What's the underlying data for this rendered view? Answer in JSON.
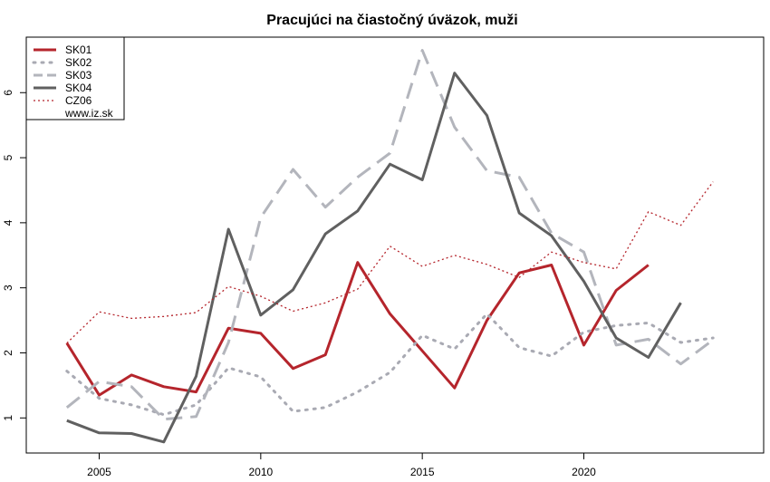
{
  "chart_data": {
    "type": "line",
    "title": "Pracujúci na čiastočný úväzok, muži",
    "xlabel": "",
    "ylabel": "",
    "xlim": [
      2003.5,
      2024.5
    ],
    "ylim": [
      0.6,
      6.7
    ],
    "x_ticks": [
      2005,
      2010,
      2015,
      2020
    ],
    "y_ticks": [
      1,
      2,
      3,
      4,
      5,
      6
    ],
    "grid": false,
    "legend_position": "top-left",
    "legend_note": "www.iz.sk",
    "series": [
      {
        "name": "SK01",
        "color": "#b5252c",
        "style": "solid",
        "x": [
          2004,
          2005,
          2006,
          2007,
          2008,
          2009,
          2010,
          2011,
          2012,
          2013,
          2014,
          2015,
          2016,
          2017,
          2018,
          2019,
          2020,
          2021,
          2022
        ],
        "y": [
          2.15,
          1.35,
          1.66,
          1.48,
          1.4,
          2.38,
          2.3,
          1.76,
          1.97,
          3.39,
          2.6,
          2.03,
          1.46,
          2.5,
          3.23,
          3.35,
          2.12,
          2.96,
          3.35
        ]
      },
      {
        "name": "SK02",
        "color": "#a9aab3",
        "style": "dotted",
        "x": [
          2004,
          2005,
          2006,
          2007,
          2008,
          2009,
          2010,
          2011,
          2012,
          2013,
          2014,
          2015,
          2016,
          2017,
          2018,
          2019,
          2020,
          2021,
          2022,
          2023,
          2024
        ],
        "y": [
          1.72,
          1.3,
          1.2,
          1.05,
          1.2,
          1.77,
          1.63,
          1.1,
          1.16,
          1.4,
          1.7,
          2.27,
          2.06,
          2.6,
          2.08,
          1.95,
          2.32,
          2.42,
          2.46,
          2.16,
          2.23
        ]
      },
      {
        "name": "SK03",
        "color": "#b3b5bc",
        "style": "dashed",
        "x": [
          2004,
          2005,
          2006,
          2007,
          2008,
          2009,
          2010,
          2011,
          2012,
          2013,
          2014,
          2015,
          2016,
          2017,
          2018,
          2019,
          2020,
          2021,
          2022,
          2023,
          2024
        ],
        "y": [
          1.16,
          1.56,
          1.48,
          0.98,
          1.02,
          2.16,
          4.08,
          4.82,
          4.24,
          4.7,
          5.07,
          6.65,
          5.47,
          4.8,
          4.7,
          3.84,
          3.55,
          2.12,
          2.21,
          1.83,
          2.2
        ]
      },
      {
        "name": "SK04",
        "color": "#606060",
        "style": "solid",
        "x": [
          2004,
          2005,
          2006,
          2007,
          2008,
          2009,
          2010,
          2011,
          2012,
          2013,
          2014,
          2015,
          2016,
          2017,
          2018,
          2019,
          2020,
          2021,
          2022,
          2023
        ],
        "y": [
          0.96,
          0.77,
          0.76,
          0.63,
          1.64,
          3.9,
          2.58,
          2.97,
          3.83,
          4.18,
          4.9,
          4.66,
          6.3,
          5.65,
          4.15,
          3.8,
          3.1,
          2.23,
          1.93,
          2.77
        ]
      },
      {
        "name": "CZ06",
        "color": "#b5252c",
        "style": "fine-dotted",
        "x": [
          2004,
          2005,
          2006,
          2007,
          2008,
          2009,
          2010,
          2011,
          2012,
          2013,
          2014,
          2015,
          2016,
          2017,
          2018,
          2019,
          2020,
          2021,
          2022,
          2023,
          2024
        ],
        "y": [
          2.15,
          2.63,
          2.53,
          2.56,
          2.62,
          3.02,
          2.87,
          2.64,
          2.77,
          2.98,
          3.64,
          3.33,
          3.5,
          3.36,
          3.16,
          3.55,
          3.39,
          3.29,
          4.17,
          3.96,
          4.63
        ]
      }
    ]
  }
}
